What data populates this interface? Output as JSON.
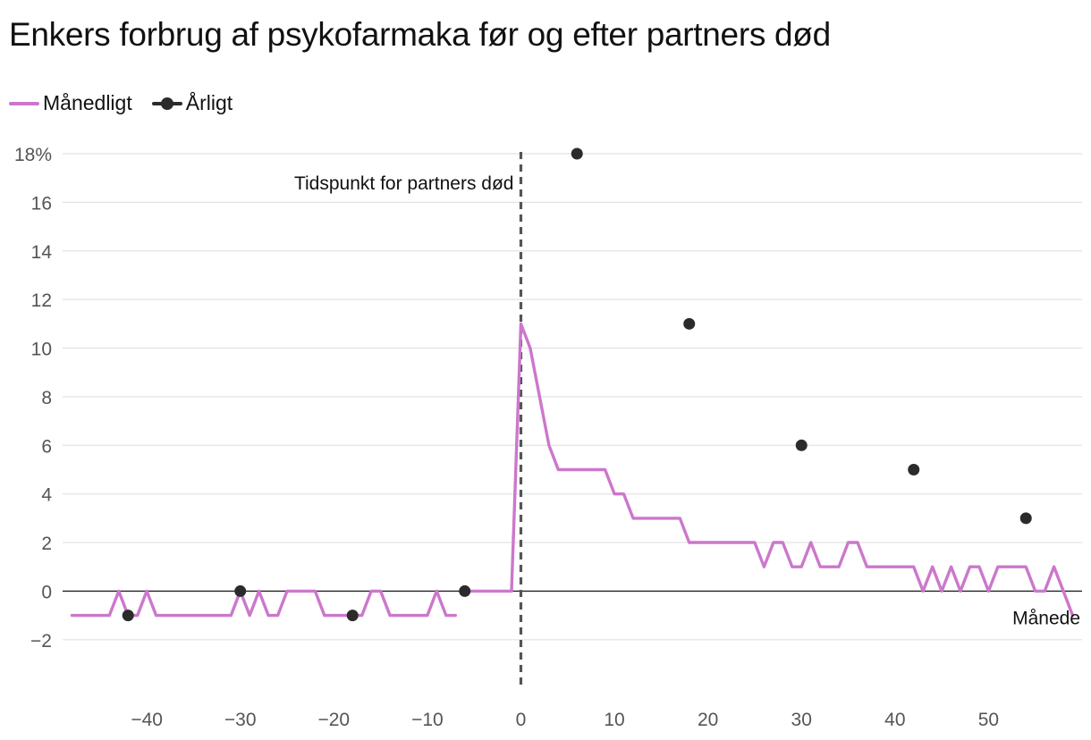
{
  "chart_data": {
    "type": "line",
    "title": "Enkers forbrug af psykofarmaka før og efter partners død",
    "xlabel": "Månede",
    "ylabel": "",
    "xlim": [
      -49,
      60
    ],
    "ylim": [
      -3,
      18
    ],
    "x_ticks": [
      -40,
      -30,
      -20,
      -10,
      0,
      10,
      20,
      30,
      40,
      50
    ],
    "x_tick_labels": [
      "−40",
      "−30",
      "−20",
      "−10",
      "0",
      "10",
      "20",
      "30",
      "40",
      "50"
    ],
    "y_ticks": [
      -2,
      0,
      2,
      4,
      6,
      8,
      10,
      12,
      14,
      16,
      18
    ],
    "y_tick_labels": [
      "−2",
      "0",
      "2",
      "4",
      "6",
      "8",
      "10",
      "12",
      "14",
      "16",
      "18%"
    ],
    "grid": true,
    "legend_position": "top-left",
    "annotations": [
      {
        "text": "Tidspunkt for partners død",
        "x": 0
      }
    ],
    "series": [
      {
        "name": "Månedligt",
        "kind": "line",
        "color": "#cc77cc",
        "x": [
          -48,
          -47,
          -46,
          -45,
          -44,
          -43,
          -42,
          -41,
          -40,
          -39,
          -38,
          -37,
          -36,
          -35,
          -34,
          -33,
          -32,
          -31,
          -30,
          -29,
          -28,
          -27,
          -26,
          -25,
          -24,
          -23,
          -22,
          -21,
          -20,
          -19,
          -18,
          -17,
          -16,
          -15,
          -14,
          -13,
          -12,
          -11,
          -10,
          -9,
          -8,
          -7,
          null,
          -6,
          -5,
          -4,
          -3,
          -2,
          -1,
          0,
          1,
          2,
          3,
          4,
          5,
          6,
          7,
          8,
          9,
          10,
          11,
          12,
          13,
          14,
          15,
          16,
          17,
          18,
          19,
          20,
          21,
          22,
          23,
          24,
          25,
          26,
          27,
          28,
          29,
          30,
          31,
          32,
          33,
          34,
          35,
          36,
          37,
          38,
          39,
          40,
          41,
          42,
          43,
          44,
          45,
          46,
          47,
          48,
          49,
          50,
          51,
          52,
          53,
          54,
          55,
          56,
          57,
          58,
          59
        ],
        "y": [
          -1,
          -1,
          -1,
          -1,
          -1,
          0,
          -1,
          -1,
          0,
          -1,
          -1,
          -1,
          -1,
          -1,
          -1,
          -1,
          -1,
          -1,
          0,
          -1,
          0,
          -1,
          -1,
          0,
          0,
          0,
          0,
          -1,
          -1,
          -1,
          -1,
          -1,
          0,
          0,
          -1,
          -1,
          -1,
          -1,
          -1,
          0,
          -1,
          -1,
          null,
          0,
          0,
          0,
          0,
          0,
          0,
          11,
          10,
          8,
          6,
          5,
          5,
          5,
          5,
          5,
          5,
          4,
          4,
          3,
          3,
          3,
          3,
          3,
          3,
          2,
          2,
          2,
          2,
          2,
          2,
          2,
          2,
          1,
          2,
          2,
          1,
          1,
          2,
          1,
          1,
          1,
          2,
          2,
          1,
          1,
          1,
          1,
          1,
          1,
          0,
          1,
          0,
          1,
          0,
          1,
          1,
          0,
          1,
          1,
          1,
          1,
          0,
          0,
          1,
          0,
          -1
        ]
      },
      {
        "name": "Årligt",
        "kind": "points",
        "color": "#2b2b2b",
        "x": [
          -42,
          -30,
          -18,
          -6,
          6,
          18,
          30,
          42,
          54
        ],
        "y": [
          -1,
          0,
          -1,
          0,
          18,
          11,
          6,
          5,
          3
        ]
      }
    ]
  }
}
